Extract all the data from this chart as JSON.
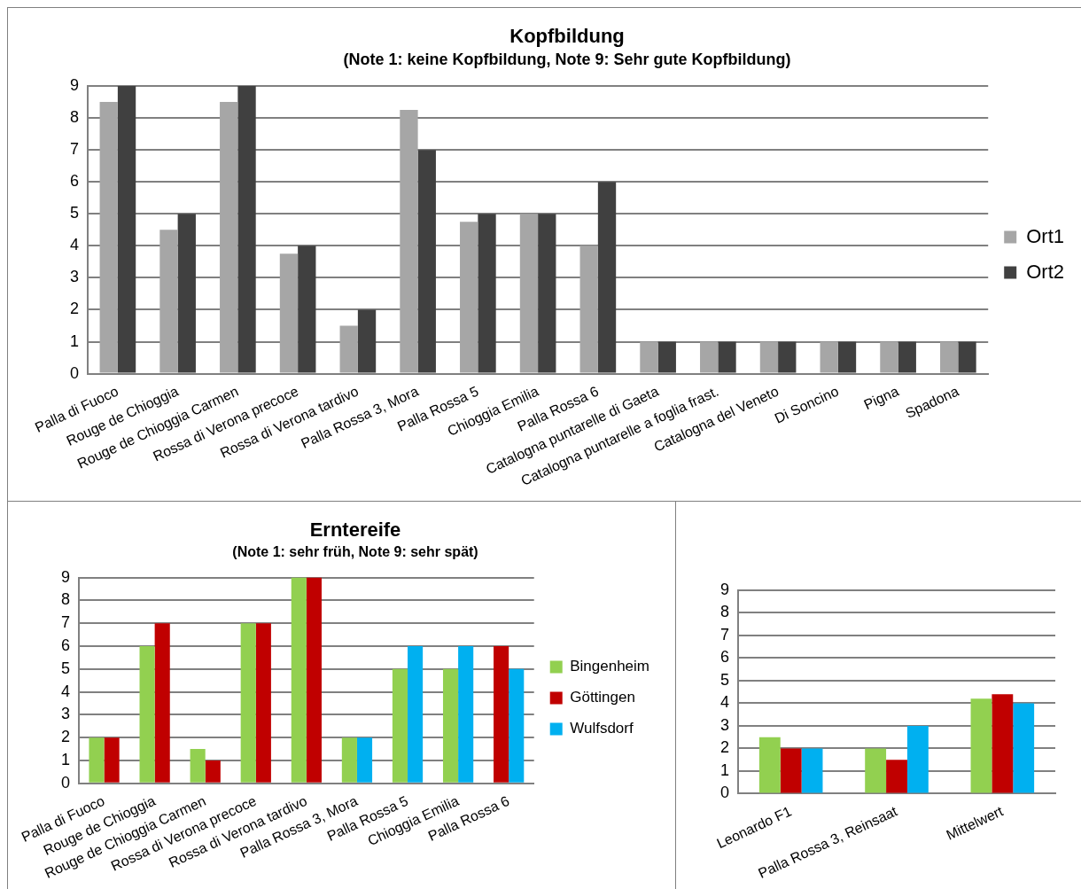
{
  "chart_data": [
    {
      "type": "bar",
      "title": "Kopfbildung",
      "subtitle": "(Note 1: keine Kopfbildung, Note 9: Sehr gute Kopfbildung)",
      "categories": [
        "Palla di Fuoco",
        "Rouge de Chioggia",
        "Rouge de Chioggia Carmen",
        "Rossa di Verona precoce",
        "Rossa di Verona tardivo",
        "Palla Rossa 3, Mora",
        "Palla Rossa 5",
        "Chioggia Emilia",
        "Palla Rossa 6",
        "Catalogna puntarelle di Gaeta",
        "Catalogna puntarelle a foglia frast.",
        "Catalogna del Veneto",
        "Di Soncino",
        "Pigna",
        "Spadona"
      ],
      "series": [
        {
          "name": "Ort1",
          "color": "#a6a6a6",
          "values": [
            8.5,
            4.5,
            8.5,
            3.75,
            1.5,
            8.25,
            4.75,
            5,
            4,
            1,
            1,
            1,
            1,
            1,
            1
          ]
        },
        {
          "name": "Ort2",
          "color": "#404040",
          "values": [
            9,
            5,
            9,
            4,
            2,
            7,
            5,
            5,
            6,
            1,
            1,
            1,
            1,
            1,
            1
          ]
        }
      ],
      "ylim": [
        0,
        9
      ],
      "yticks": [
        0,
        1,
        2,
        3,
        4,
        5,
        6,
        7,
        8,
        9
      ],
      "grid": "y",
      "legend": "right"
    },
    {
      "type": "bar",
      "title": "Erntereife",
      "subtitle": "(Note 1: sehr früh, Note 9: sehr spät)",
      "categories": [
        "Palla di Fuoco",
        "Rouge de Chioggia",
        "Rouge de Chioggia Carmen",
        "Rossa di Verona precoce",
        "Rossa di Verona tardivo",
        "Palla Rossa 3, Mora",
        "Palla Rossa 5",
        "Chioggia Emilia",
        "Palla Rossa 6"
      ],
      "series": [
        {
          "name": "Bingenheim",
          "color": "#92d050",
          "values": [
            2,
            6,
            1.5,
            7,
            9,
            2,
            5,
            5,
            null
          ]
        },
        {
          "name": "Göttingen",
          "color": "#c00000",
          "values": [
            2,
            7,
            1,
            7,
            9,
            null,
            null,
            null,
            6
          ]
        },
        {
          "name": "Wulfsdorf",
          "color": "#00b0f0",
          "values": [
            null,
            null,
            null,
            null,
            null,
            2,
            6,
            6,
            5
          ]
        }
      ],
      "ylim": [
        0,
        9
      ],
      "yticks": [
        0,
        1,
        2,
        3,
        4,
        5,
        6,
        7,
        8,
        9
      ],
      "grid": "y",
      "legend": "right"
    },
    {
      "type": "bar",
      "categories": [
        "Leonardo F1",
        "Palla Rossa 3, Reinsaat",
        "Mittelwert"
      ],
      "series": [
        {
          "color": "#92d050",
          "values": [
            2.5,
            2,
            4.2
          ]
        },
        {
          "color": "#c00000",
          "values": [
            2,
            1.5,
            4.4
          ]
        },
        {
          "color": "#00b0f0",
          "values": [
            2,
            3,
            4
          ]
        }
      ],
      "ylim": [
        0,
        9
      ],
      "yticks": [
        0,
        1,
        2,
        3,
        4,
        5,
        6,
        7,
        8,
        9
      ],
      "grid": "y"
    }
  ]
}
